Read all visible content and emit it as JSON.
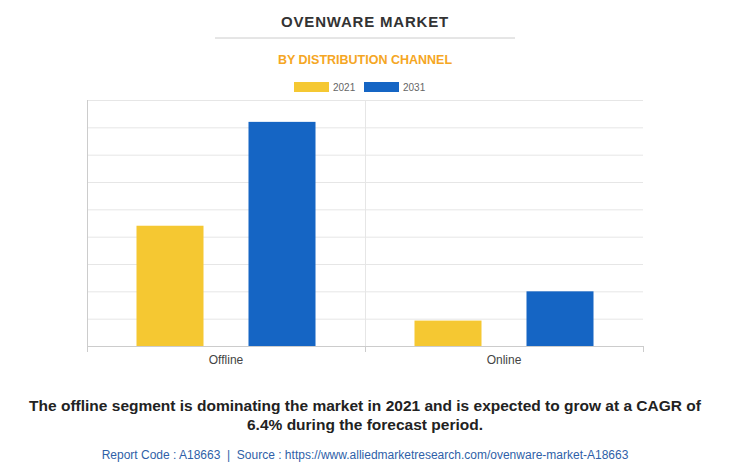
{
  "chart_data": {
    "type": "bar",
    "title": "OVENWARE MARKET",
    "subtitle": "BY DISTRIBUTION CHANNEL",
    "categories": [
      "Offline",
      "Online"
    ],
    "series": [
      {
        "name": "2021",
        "color": "#f5c832",
        "values": [
          4.4,
          0.93
        ]
      },
      {
        "name": "2031",
        "color": "#1565c4",
        "values": [
          8.2,
          2.0
        ]
      }
    ],
    "ylim": [
      0,
      9
    ],
    "yticks": [
      0,
      1,
      2,
      3,
      4,
      5,
      6,
      7,
      8,
      9
    ],
    "grid": true,
    "tick_labels": "x",
    "legend": "top",
    "caption": "The offline segment is dominating the market in 2021 and is expected to grow at a CAGR of 6.4% during the forecast period.",
    "footer": "Report Code : A18663  |  Source : https://www.alliedmarketresearch.com/ovenware-market-A18663"
  }
}
